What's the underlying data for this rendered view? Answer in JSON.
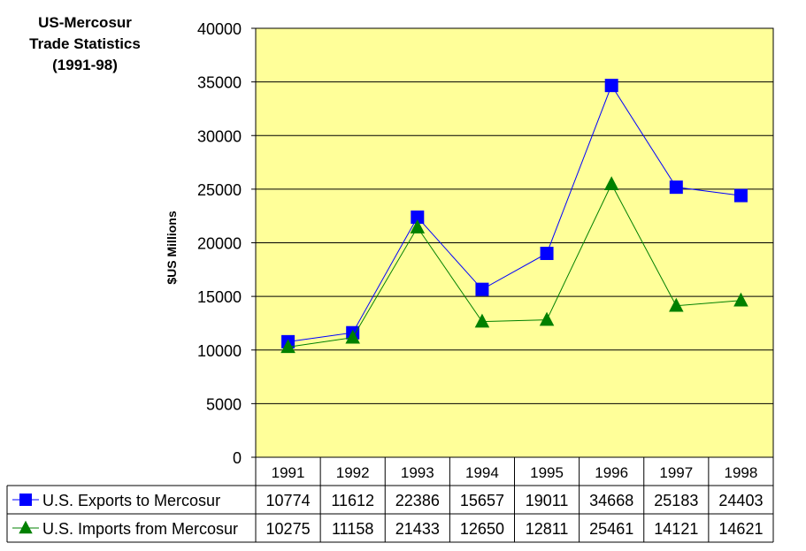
{
  "chart_data": {
    "type": "line",
    "title_lines": [
      "US-Mercosur",
      "Trade Statistics",
      "(1991-98)"
    ],
    "ylabel": "$US Millions",
    "xlabel": "",
    "categories": [
      "1991",
      "1992",
      "1993",
      "1994",
      "1995",
      "1996",
      "1997",
      "1998"
    ],
    "ylim": [
      0,
      40000
    ],
    "yticks": [
      "0",
      "5000",
      "10000",
      "15000",
      "20000",
      "25000",
      "30000",
      "35000",
      "40000"
    ],
    "grid": true,
    "plot_background": "#FFFF99",
    "series": [
      {
        "name": "U.S. Exports to Mercosur",
        "color": "#0000FF",
        "marker": "square",
        "values": [
          10774,
          11612,
          22386,
          15657,
          19011,
          34668,
          25183,
          24403
        ]
      },
      {
        "name": "U.S. Imports from Mercosur",
        "color": "#008000",
        "marker": "triangle",
        "values": [
          10275,
          11158,
          21433,
          12650,
          12811,
          25461,
          14121,
          14621
        ]
      }
    ]
  }
}
